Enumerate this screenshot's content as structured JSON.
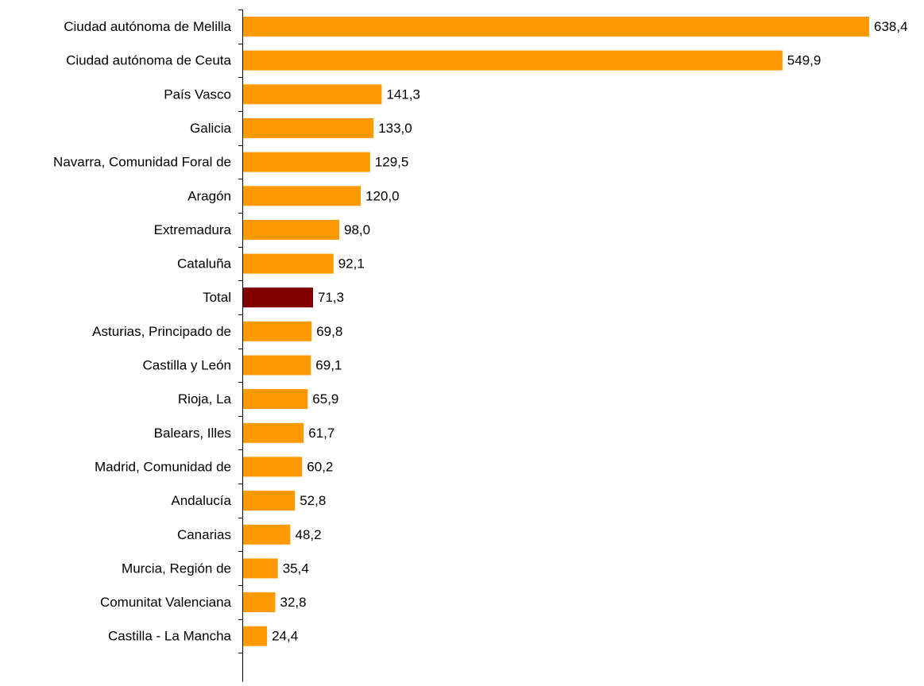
{
  "chart_data": {
    "type": "bar",
    "orientation": "horizontal",
    "categories": [
      "Ciudad autónoma de Melilla",
      "Ciudad autónoma de Ceuta",
      "País Vasco",
      "Galicia",
      "Navarra, Comunidad Foral de",
      "Aragón",
      "Extremadura",
      "Cataluña",
      "Total",
      "Asturias, Principado de",
      "Castilla y León",
      "Rioja, La",
      "Balears, Illes",
      "Madrid, Comunidad de",
      "Andalucía",
      "Canarias",
      "Murcia, Región de",
      "Comunitat Valenciana",
      "Castilla - La Mancha"
    ],
    "values": [
      638.4,
      549.9,
      141.3,
      133.0,
      129.5,
      120.0,
      98.0,
      92.1,
      71.3,
      69.8,
      69.1,
      65.9,
      61.7,
      60.2,
      52.8,
      48.2,
      35.4,
      32.8,
      24.4
    ],
    "value_labels": [
      "638,4",
      "549,9",
      "141,3",
      "133,0",
      "129,5",
      "120,0",
      "98,0",
      "92,1",
      "71,3",
      "69,8",
      "69,1",
      "65,9",
      "61,7",
      "60,2",
      "52,8",
      "48,2",
      "35,4",
      "32,8",
      "24,4"
    ],
    "highlight_category": "Total",
    "colors": {
      "bar": "#FF9900",
      "highlight": "#800000",
      "axis": "#000000",
      "text": "#000000"
    },
    "xlim": [
      0,
      638.4
    ],
    "grid": false,
    "legend": "none",
    "title": "",
    "xlabel": "",
    "ylabel": ""
  }
}
